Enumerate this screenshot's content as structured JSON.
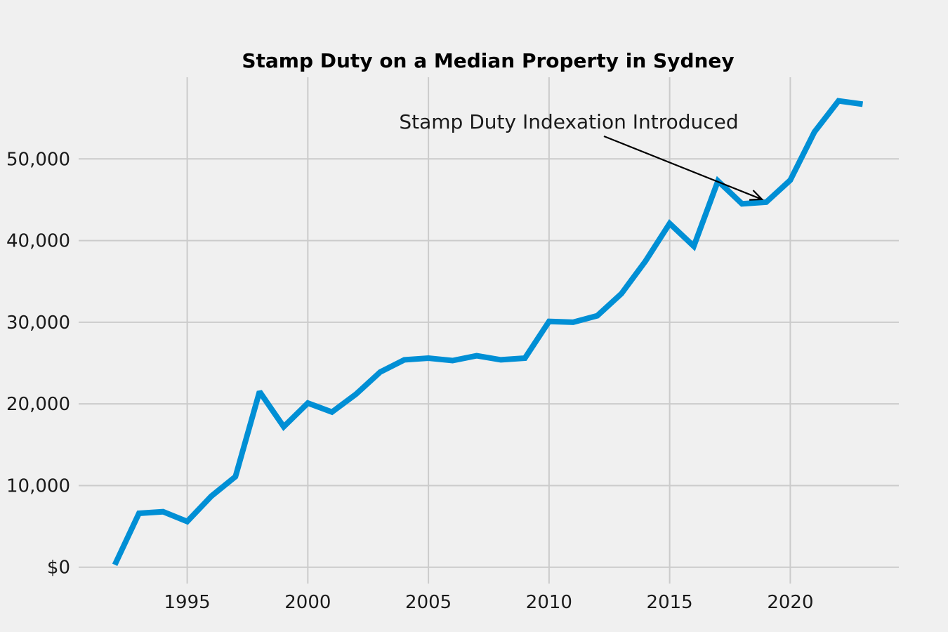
{
  "chart_data": {
    "type": "line",
    "title": "Stamp Duty on a Median Property in Sydney",
    "xlabel": "",
    "ylabel": "",
    "xlim": [
      1990.5,
      2024.5
    ],
    "ylim": [
      -2000,
      60000
    ],
    "grid": true,
    "x_ticks": [
      1995,
      2000,
      2005,
      2010,
      2015,
      2020
    ],
    "x_tick_labels": [
      "1995",
      "2000",
      "2005",
      "2010",
      "2015",
      "2020"
    ],
    "y_ticks": [
      0,
      10000,
      20000,
      30000,
      40000,
      50000
    ],
    "y_tick_labels": [
      "$0",
      "10,000",
      "20,000",
      "30,000",
      "40,000",
      "50,000"
    ],
    "line_color": "#008fd5",
    "background": "#f0f0f0",
    "series": [
      {
        "x": [
          1992,
          1993,
          1994,
          1995,
          1996,
          1997,
          1998,
          1999,
          2000,
          2001,
          2002,
          2003,
          2004,
          2005,
          2006,
          2007,
          2008,
          2009,
          2010,
          2011,
          2012,
          2013,
          2014,
          2015,
          2016,
          2017,
          2018,
          2019,
          2020,
          2021,
          2022,
          2023
        ],
        "values": [
          300,
          6600,
          6800,
          5600,
          8700,
          11100,
          21500,
          17200,
          20100,
          19000,
          21200,
          23900,
          25400,
          25600,
          25300,
          25900,
          25400,
          25600,
          30100,
          30000,
          30800,
          33500,
          37500,
          42100,
          39300,
          47300,
          44500,
          44700,
          47400,
          53300,
          57100,
          56700
        ]
      }
    ],
    "annotation": {
      "text": "Stamp Duty Indexation Introduced",
      "x": 2019,
      "y": 44700
    }
  }
}
